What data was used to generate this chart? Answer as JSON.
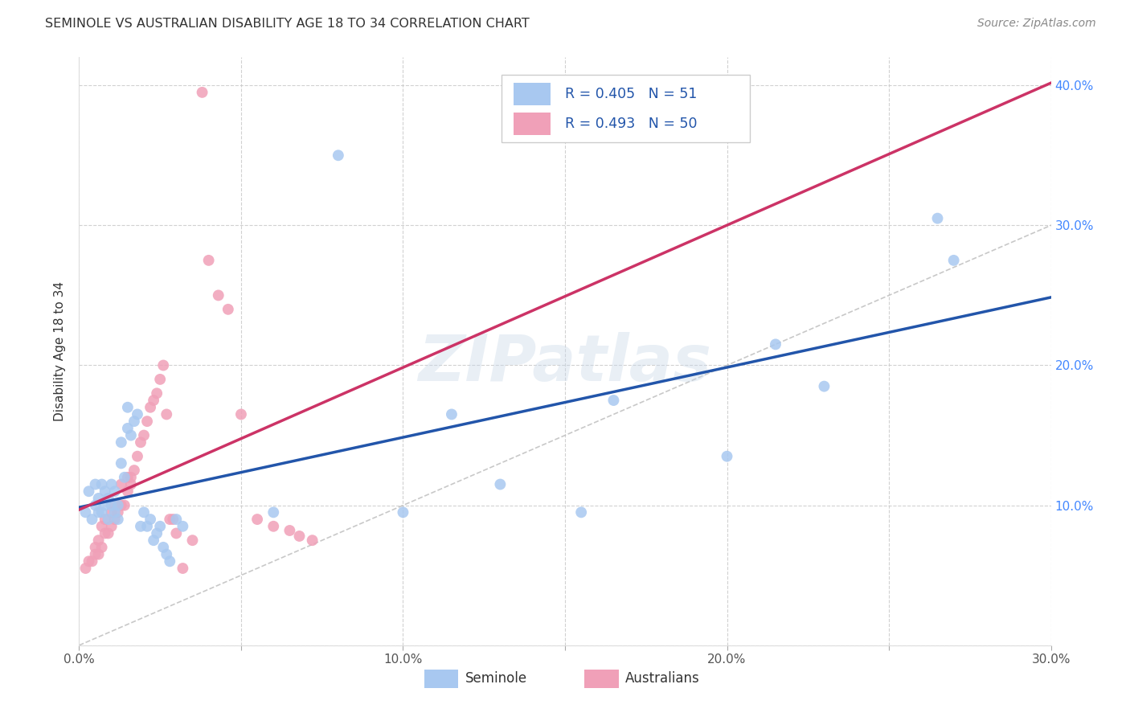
{
  "title": "SEMINOLE VS AUSTRALIAN DISABILITY AGE 18 TO 34 CORRELATION CHART",
  "source": "Source: ZipAtlas.com",
  "ylabel": "Disability Age 18 to 34",
  "xlim": [
    0.0,
    0.3
  ],
  "ylim": [
    0.0,
    0.42
  ],
  "xticks": [
    0.0,
    0.05,
    0.1,
    0.15,
    0.2,
    0.25,
    0.3
  ],
  "yticks": [
    0.0,
    0.1,
    0.2,
    0.3,
    0.4
  ],
  "ytick_labels": [
    "",
    "10.0%",
    "20.0%",
    "30.0%",
    "40.0%"
  ],
  "xtick_labels": [
    "0.0%",
    "",
    "10.0%",
    "",
    "20.0%",
    "",
    "30.0%"
  ],
  "blue_R": 0.405,
  "blue_N": 51,
  "pink_R": 0.493,
  "pink_N": 50,
  "blue_color": "#A8C8F0",
  "pink_color": "#F0A0B8",
  "blue_line_color": "#2255AA",
  "pink_line_color": "#CC3366",
  "ref_line_color": "#BBBBBB",
  "legend_label_blue": "Seminole",
  "legend_label_pink": "Australians",
  "watermark": "ZIPatlas",
  "background_color": "#FFFFFF",
  "blue_scatter_x": [
    0.002,
    0.003,
    0.004,
    0.005,
    0.005,
    0.006,
    0.006,
    0.007,
    0.007,
    0.008,
    0.008,
    0.009,
    0.009,
    0.01,
    0.01,
    0.011,
    0.011,
    0.012,
    0.012,
    0.013,
    0.013,
    0.014,
    0.015,
    0.015,
    0.016,
    0.017,
    0.018,
    0.019,
    0.02,
    0.021,
    0.022,
    0.023,
    0.024,
    0.025,
    0.026,
    0.027,
    0.028,
    0.03,
    0.032,
    0.06,
    0.08,
    0.1,
    0.115,
    0.13,
    0.155,
    0.165,
    0.2,
    0.215,
    0.23,
    0.265,
    0.27
  ],
  "blue_scatter_y": [
    0.095,
    0.11,
    0.09,
    0.1,
    0.115,
    0.095,
    0.105,
    0.095,
    0.115,
    0.1,
    0.11,
    0.09,
    0.105,
    0.1,
    0.115,
    0.095,
    0.11,
    0.09,
    0.1,
    0.13,
    0.145,
    0.12,
    0.155,
    0.17,
    0.15,
    0.16,
    0.165,
    0.085,
    0.095,
    0.085,
    0.09,
    0.075,
    0.08,
    0.085,
    0.07,
    0.065,
    0.06,
    0.09,
    0.085,
    0.095,
    0.35,
    0.095,
    0.165,
    0.115,
    0.095,
    0.175,
    0.135,
    0.215,
    0.185,
    0.305,
    0.275
  ],
  "pink_scatter_x": [
    0.002,
    0.003,
    0.004,
    0.005,
    0.005,
    0.006,
    0.006,
    0.007,
    0.007,
    0.008,
    0.008,
    0.009,
    0.01,
    0.01,
    0.011,
    0.011,
    0.012,
    0.013,
    0.013,
    0.014,
    0.015,
    0.015,
    0.016,
    0.016,
    0.017,
    0.018,
    0.019,
    0.02,
    0.021,
    0.022,
    0.023,
    0.024,
    0.025,
    0.026,
    0.027,
    0.028,
    0.029,
    0.03,
    0.032,
    0.035,
    0.038,
    0.04,
    0.043,
    0.046,
    0.05,
    0.055,
    0.06,
    0.065,
    0.068,
    0.072
  ],
  "pink_scatter_y": [
    0.055,
    0.06,
    0.06,
    0.065,
    0.07,
    0.065,
    0.075,
    0.085,
    0.07,
    0.08,
    0.09,
    0.08,
    0.095,
    0.085,
    0.09,
    0.1,
    0.095,
    0.1,
    0.115,
    0.1,
    0.11,
    0.12,
    0.12,
    0.115,
    0.125,
    0.135,
    0.145,
    0.15,
    0.16,
    0.17,
    0.175,
    0.18,
    0.19,
    0.2,
    0.165,
    0.09,
    0.09,
    0.08,
    0.055,
    0.075,
    0.395,
    0.275,
    0.25,
    0.24,
    0.165,
    0.09,
    0.085,
    0.082,
    0.078,
    0.075
  ]
}
